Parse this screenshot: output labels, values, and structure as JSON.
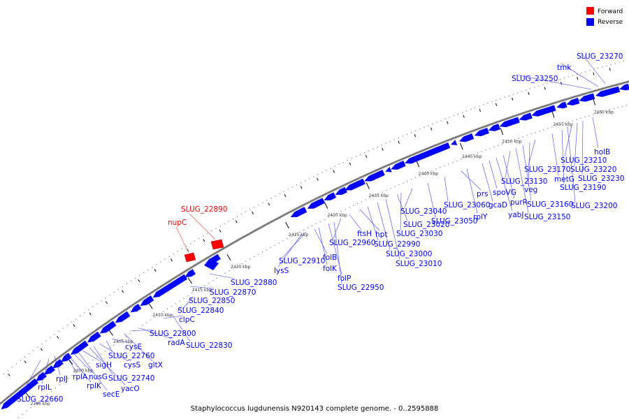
{
  "caption": "Staphylococcus lugdunensis N920143 complete genome. - 0..2595888",
  "legend": [
    {
      "label": "Forward",
      "color": "#ff0000"
    },
    {
      "label": "Reverse",
      "color": "#0000ff"
    }
  ],
  "colors": {
    "forward": "#ff0000",
    "reverse": "#0000ff",
    "backbone": "#888888"
  },
  "ticks": [
    "2395 kbp",
    "2400 kbp",
    "2405 kbp",
    "2410 kbp",
    "2415 kbp",
    "2420 kbp",
    "2425 kbp",
    "2430 kbp",
    "2435 kbp",
    "2440 kbp",
    "2445 kbp",
    "2450 kbp",
    "2455 kbp",
    "2460 kbp"
  ],
  "forward_labels": [
    "nupC",
    "SLUG_22890"
  ],
  "reverse_labels": [
    "SLUG_22660",
    "rplL",
    "rplJ",
    "rplA",
    "rplK",
    "nusG",
    "secE",
    "sigH",
    "yacO",
    "SLUG_22740",
    "cysS",
    "SLUG_22760",
    "cysE",
    "gltX",
    "radA",
    "SLUG_22800",
    "clpC",
    "SLUG_22830",
    "SLUG_22840",
    "SLUG_22850",
    "SLUG_22870",
    "SLUG_22880",
    "lysS",
    "SLUG_22910",
    "folB",
    "folK",
    "folP",
    "SLUG_22950",
    "SLUG_22960",
    "ftsH",
    "hpt",
    "SLUG_22990",
    "SLUG_23000",
    "SLUG_23010",
    "SLUG_23020",
    "SLUG_23030",
    "SLUG_23040",
    "SLUG_23050",
    "SLUG_23060",
    "prs",
    "rplY",
    "gcaD",
    "spoVG",
    "yabJ",
    "purR",
    "SLUG_23130",
    "SLUG_23150",
    "SLUG_23160",
    "veg",
    "SLUG_23170",
    "metG",
    "SLUG_23190",
    "SLUG_23200",
    "SLUG_23210",
    "SLUG_23220",
    "SLUG_23230",
    "holB",
    "SLUG_23250",
    "tmk",
    "SLUG_23270"
  ]
}
